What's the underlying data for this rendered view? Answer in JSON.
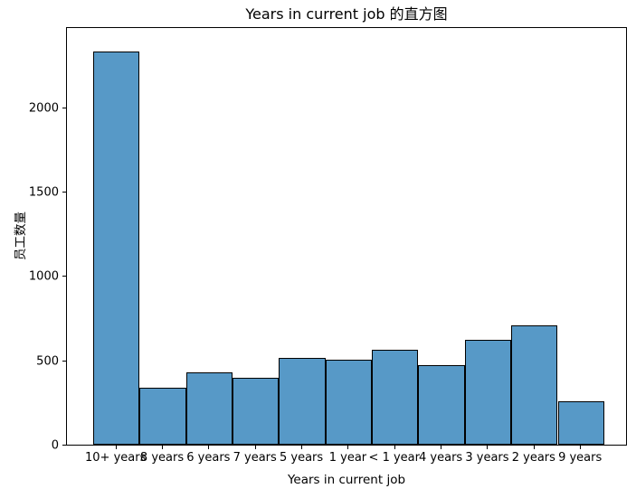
{
  "chart_data": {
    "type": "histogram",
    "title": "Years in current job 的直方图",
    "xlabel": "Years in current job",
    "ylabel": "员工数量",
    "categories": [
      "10+ years",
      "8 years",
      "6 years",
      "7 years",
      "5 years",
      "1 year",
      "< 1 year",
      "4 years",
      "3 years",
      "2 years",
      "9 years"
    ],
    "values": [
      2332,
      339,
      426,
      396,
      516,
      504,
      563,
      469,
      620,
      705,
      259
    ],
    "yticks": [
      0,
      500,
      1000,
      1500,
      2000
    ],
    "ylim": [
      0,
      2480
    ],
    "grid": false,
    "legend": "none",
    "bar_color": "#5799c7",
    "bar_edge_color": "#000000",
    "text_color": "#000000",
    "background_color": "#ffffff"
  }
}
